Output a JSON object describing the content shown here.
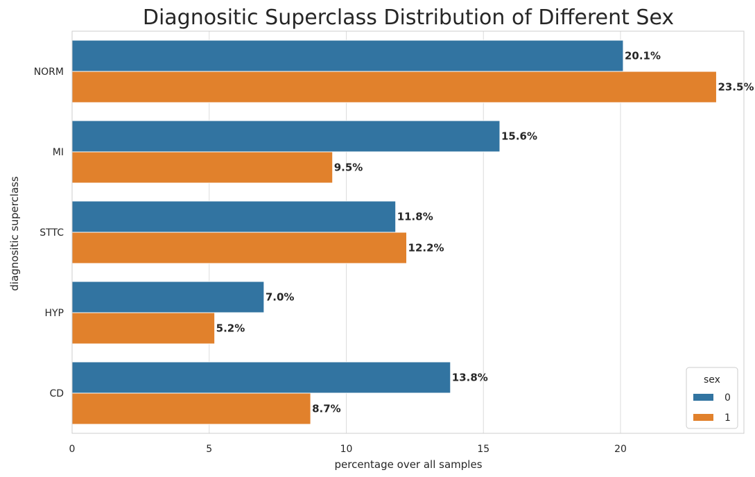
{
  "chart_data": {
    "type": "bar",
    "orientation": "horizontal",
    "title": "Diagnositic Superclass Distribution of Different Sex",
    "xlabel": "percentage over all samples",
    "ylabel": "diagnositic superclass",
    "categories": [
      "NORM",
      "MI",
      "STTC",
      "HYP",
      "CD"
    ],
    "xlim": [
      0,
      24.5
    ],
    "xticks": [
      0,
      5,
      10,
      15,
      20
    ],
    "grid": true,
    "legend": {
      "title": "sex",
      "placement": "lower-right"
    },
    "series": [
      {
        "name": "0",
        "color": "#3274a1",
        "values": [
          20.1,
          15.6,
          11.8,
          7.0,
          13.8
        ],
        "labels": [
          "20.1%",
          "15.6%",
          "11.8%",
          "7.0%",
          "13.8%"
        ]
      },
      {
        "name": "1",
        "color": "#e1812c",
        "values": [
          23.5,
          9.5,
          12.2,
          5.2,
          8.7
        ],
        "labels": [
          "23.5%",
          "9.5%",
          "12.2%",
          "5.2%",
          "8.7%"
        ]
      }
    ]
  }
}
